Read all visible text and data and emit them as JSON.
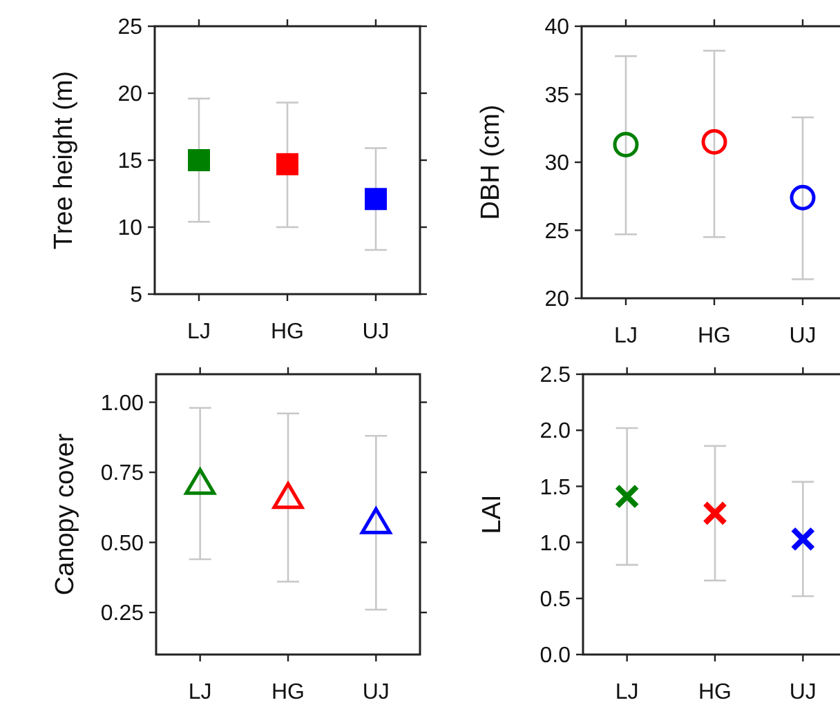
{
  "chart_data": [
    {
      "type": "scatter",
      "ylabel": "Tree height (m)",
      "categories": [
        "LJ",
        "HG",
        "UJ"
      ],
      "values": [
        15.0,
        14.7,
        12.1
      ],
      "colors": [
        "#008000",
        "#ff0000",
        "#0000ff"
      ],
      "errors": [
        [
          10.4,
          19.6
        ],
        [
          10.0,
          19.3
        ],
        [
          8.3,
          15.9
        ]
      ],
      "ylim": [
        5,
        25
      ],
      "yticks": [
        5,
        10,
        15,
        20,
        25
      ],
      "marker": "square",
      "grid": false
    },
    {
      "type": "scatter",
      "ylabel": "DBH (cm)",
      "categories": [
        "LJ",
        "HG",
        "UJ"
      ],
      "values": [
        31.3,
        31.5,
        27.4
      ],
      "colors": [
        "#008000",
        "#ff0000",
        "#0000ff"
      ],
      "errors": [
        [
          24.7,
          37.8
        ],
        [
          24.5,
          38.2
        ],
        [
          21.4,
          33.3
        ]
      ],
      "ylim": [
        20,
        40
      ],
      "yticks": [
        20,
        25,
        30,
        35,
        40
      ],
      "marker": "circle",
      "grid": false
    },
    {
      "type": "scatter",
      "ylabel": "Canopy cover",
      "categories": [
        "LJ",
        "HG",
        "UJ"
      ],
      "values": [
        0.71,
        0.66,
        0.57
      ],
      "colors": [
        "#008000",
        "#ff0000",
        "#0000ff"
      ],
      "errors": [
        [
          0.44,
          0.98
        ],
        [
          0.36,
          0.96
        ],
        [
          0.26,
          0.88
        ]
      ],
      "ylim": [
        0.1,
        1.1
      ],
      "yticks": [
        {
          "value": 0.25,
          "label": "0.25"
        },
        {
          "value": 0.5,
          "label": "0.50"
        },
        {
          "value": 0.75,
          "label": "0.75"
        },
        {
          "value": 1,
          "label": "1.00"
        }
      ],
      "marker": "triangle",
      "grid": false
    },
    {
      "type": "scatter",
      "ylabel": "LAI",
      "categories": [
        "LJ",
        "HG",
        "UJ"
      ],
      "values": [
        1.41,
        1.26,
        1.03
      ],
      "colors": [
        "#008000",
        "#ff0000",
        "#0000ff"
      ],
      "errors": [
        [
          0.8,
          2.02
        ],
        [
          0.66,
          1.86
        ],
        [
          0.52,
          1.54
        ]
      ],
      "ylim": [
        0,
        2.5
      ],
      "yticks": [
        {
          "value": 0,
          "label": "0.0"
        },
        {
          "value": 0.5,
          "label": "0.5"
        },
        {
          "value": 1,
          "label": "1.0"
        },
        {
          "value": 1.5,
          "label": "1.5"
        },
        {
          "value": 2,
          "label": "2.0"
        },
        {
          "value": 2.5,
          "label": "2.5"
        }
      ],
      "marker": "cross",
      "grid": false
    }
  ]
}
